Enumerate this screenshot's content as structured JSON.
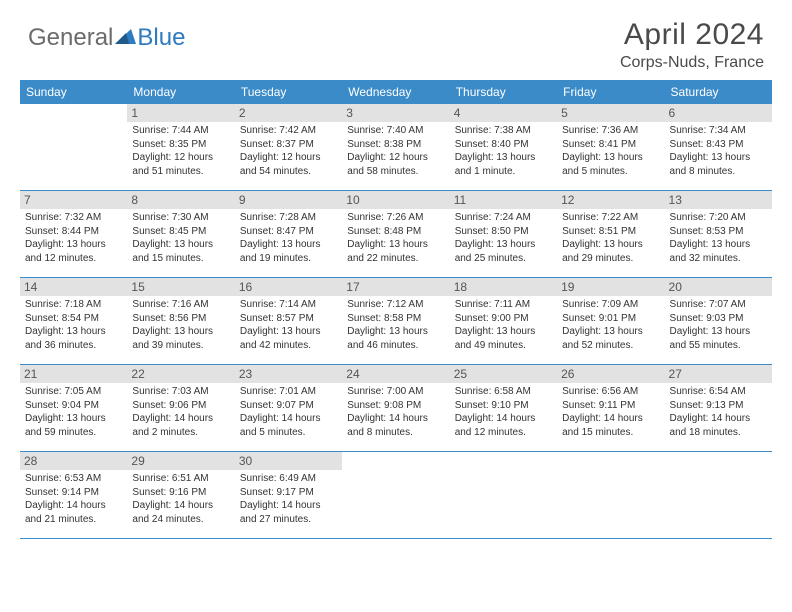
{
  "logo": {
    "text_general": "General",
    "text_blue": "Blue",
    "icon_color": "#2d7bc0"
  },
  "title": "April 2024",
  "location": "Corps-Nuds, France",
  "colors": {
    "header_bg": "#3b8bc9",
    "header_text": "#ffffff",
    "daynum_bg": "#e2e2e2",
    "border": "#3b8bc9",
    "text": "#333333"
  },
  "day_headers": [
    "Sunday",
    "Monday",
    "Tuesday",
    "Wednesday",
    "Thursday",
    "Friday",
    "Saturday"
  ],
  "weeks": [
    [
      {
        "num": "",
        "sunrise": "",
        "sunset": "",
        "daylight1": "",
        "daylight2": ""
      },
      {
        "num": "1",
        "sunrise": "Sunrise: 7:44 AM",
        "sunset": "Sunset: 8:35 PM",
        "daylight1": "Daylight: 12 hours",
        "daylight2": "and 51 minutes."
      },
      {
        "num": "2",
        "sunrise": "Sunrise: 7:42 AM",
        "sunset": "Sunset: 8:37 PM",
        "daylight1": "Daylight: 12 hours",
        "daylight2": "and 54 minutes."
      },
      {
        "num": "3",
        "sunrise": "Sunrise: 7:40 AM",
        "sunset": "Sunset: 8:38 PM",
        "daylight1": "Daylight: 12 hours",
        "daylight2": "and 58 minutes."
      },
      {
        "num": "4",
        "sunrise": "Sunrise: 7:38 AM",
        "sunset": "Sunset: 8:40 PM",
        "daylight1": "Daylight: 13 hours",
        "daylight2": "and 1 minute."
      },
      {
        "num": "5",
        "sunrise": "Sunrise: 7:36 AM",
        "sunset": "Sunset: 8:41 PM",
        "daylight1": "Daylight: 13 hours",
        "daylight2": "and 5 minutes."
      },
      {
        "num": "6",
        "sunrise": "Sunrise: 7:34 AM",
        "sunset": "Sunset: 8:43 PM",
        "daylight1": "Daylight: 13 hours",
        "daylight2": "and 8 minutes."
      }
    ],
    [
      {
        "num": "7",
        "sunrise": "Sunrise: 7:32 AM",
        "sunset": "Sunset: 8:44 PM",
        "daylight1": "Daylight: 13 hours",
        "daylight2": "and 12 minutes."
      },
      {
        "num": "8",
        "sunrise": "Sunrise: 7:30 AM",
        "sunset": "Sunset: 8:45 PM",
        "daylight1": "Daylight: 13 hours",
        "daylight2": "and 15 minutes."
      },
      {
        "num": "9",
        "sunrise": "Sunrise: 7:28 AM",
        "sunset": "Sunset: 8:47 PM",
        "daylight1": "Daylight: 13 hours",
        "daylight2": "and 19 minutes."
      },
      {
        "num": "10",
        "sunrise": "Sunrise: 7:26 AM",
        "sunset": "Sunset: 8:48 PM",
        "daylight1": "Daylight: 13 hours",
        "daylight2": "and 22 minutes."
      },
      {
        "num": "11",
        "sunrise": "Sunrise: 7:24 AM",
        "sunset": "Sunset: 8:50 PM",
        "daylight1": "Daylight: 13 hours",
        "daylight2": "and 25 minutes."
      },
      {
        "num": "12",
        "sunrise": "Sunrise: 7:22 AM",
        "sunset": "Sunset: 8:51 PM",
        "daylight1": "Daylight: 13 hours",
        "daylight2": "and 29 minutes."
      },
      {
        "num": "13",
        "sunrise": "Sunrise: 7:20 AM",
        "sunset": "Sunset: 8:53 PM",
        "daylight1": "Daylight: 13 hours",
        "daylight2": "and 32 minutes."
      }
    ],
    [
      {
        "num": "14",
        "sunrise": "Sunrise: 7:18 AM",
        "sunset": "Sunset: 8:54 PM",
        "daylight1": "Daylight: 13 hours",
        "daylight2": "and 36 minutes."
      },
      {
        "num": "15",
        "sunrise": "Sunrise: 7:16 AM",
        "sunset": "Sunset: 8:56 PM",
        "daylight1": "Daylight: 13 hours",
        "daylight2": "and 39 minutes."
      },
      {
        "num": "16",
        "sunrise": "Sunrise: 7:14 AM",
        "sunset": "Sunset: 8:57 PM",
        "daylight1": "Daylight: 13 hours",
        "daylight2": "and 42 minutes."
      },
      {
        "num": "17",
        "sunrise": "Sunrise: 7:12 AM",
        "sunset": "Sunset: 8:58 PM",
        "daylight1": "Daylight: 13 hours",
        "daylight2": "and 46 minutes."
      },
      {
        "num": "18",
        "sunrise": "Sunrise: 7:11 AM",
        "sunset": "Sunset: 9:00 PM",
        "daylight1": "Daylight: 13 hours",
        "daylight2": "and 49 minutes."
      },
      {
        "num": "19",
        "sunrise": "Sunrise: 7:09 AM",
        "sunset": "Sunset: 9:01 PM",
        "daylight1": "Daylight: 13 hours",
        "daylight2": "and 52 minutes."
      },
      {
        "num": "20",
        "sunrise": "Sunrise: 7:07 AM",
        "sunset": "Sunset: 9:03 PM",
        "daylight1": "Daylight: 13 hours",
        "daylight2": "and 55 minutes."
      }
    ],
    [
      {
        "num": "21",
        "sunrise": "Sunrise: 7:05 AM",
        "sunset": "Sunset: 9:04 PM",
        "daylight1": "Daylight: 13 hours",
        "daylight2": "and 59 minutes."
      },
      {
        "num": "22",
        "sunrise": "Sunrise: 7:03 AM",
        "sunset": "Sunset: 9:06 PM",
        "daylight1": "Daylight: 14 hours",
        "daylight2": "and 2 minutes."
      },
      {
        "num": "23",
        "sunrise": "Sunrise: 7:01 AM",
        "sunset": "Sunset: 9:07 PM",
        "daylight1": "Daylight: 14 hours",
        "daylight2": "and 5 minutes."
      },
      {
        "num": "24",
        "sunrise": "Sunrise: 7:00 AM",
        "sunset": "Sunset: 9:08 PM",
        "daylight1": "Daylight: 14 hours",
        "daylight2": "and 8 minutes."
      },
      {
        "num": "25",
        "sunrise": "Sunrise: 6:58 AM",
        "sunset": "Sunset: 9:10 PM",
        "daylight1": "Daylight: 14 hours",
        "daylight2": "and 12 minutes."
      },
      {
        "num": "26",
        "sunrise": "Sunrise: 6:56 AM",
        "sunset": "Sunset: 9:11 PM",
        "daylight1": "Daylight: 14 hours",
        "daylight2": "and 15 minutes."
      },
      {
        "num": "27",
        "sunrise": "Sunrise: 6:54 AM",
        "sunset": "Sunset: 9:13 PM",
        "daylight1": "Daylight: 14 hours",
        "daylight2": "and 18 minutes."
      }
    ],
    [
      {
        "num": "28",
        "sunrise": "Sunrise: 6:53 AM",
        "sunset": "Sunset: 9:14 PM",
        "daylight1": "Daylight: 14 hours",
        "daylight2": "and 21 minutes."
      },
      {
        "num": "29",
        "sunrise": "Sunrise: 6:51 AM",
        "sunset": "Sunset: 9:16 PM",
        "daylight1": "Daylight: 14 hours",
        "daylight2": "and 24 minutes."
      },
      {
        "num": "30",
        "sunrise": "Sunrise: 6:49 AM",
        "sunset": "Sunset: 9:17 PM",
        "daylight1": "Daylight: 14 hours",
        "daylight2": "and 27 minutes."
      },
      {
        "num": "",
        "sunrise": "",
        "sunset": "",
        "daylight1": "",
        "daylight2": ""
      },
      {
        "num": "",
        "sunrise": "",
        "sunset": "",
        "daylight1": "",
        "daylight2": ""
      },
      {
        "num": "",
        "sunrise": "",
        "sunset": "",
        "daylight1": "",
        "daylight2": ""
      },
      {
        "num": "",
        "sunrise": "",
        "sunset": "",
        "daylight1": "",
        "daylight2": ""
      }
    ]
  ]
}
